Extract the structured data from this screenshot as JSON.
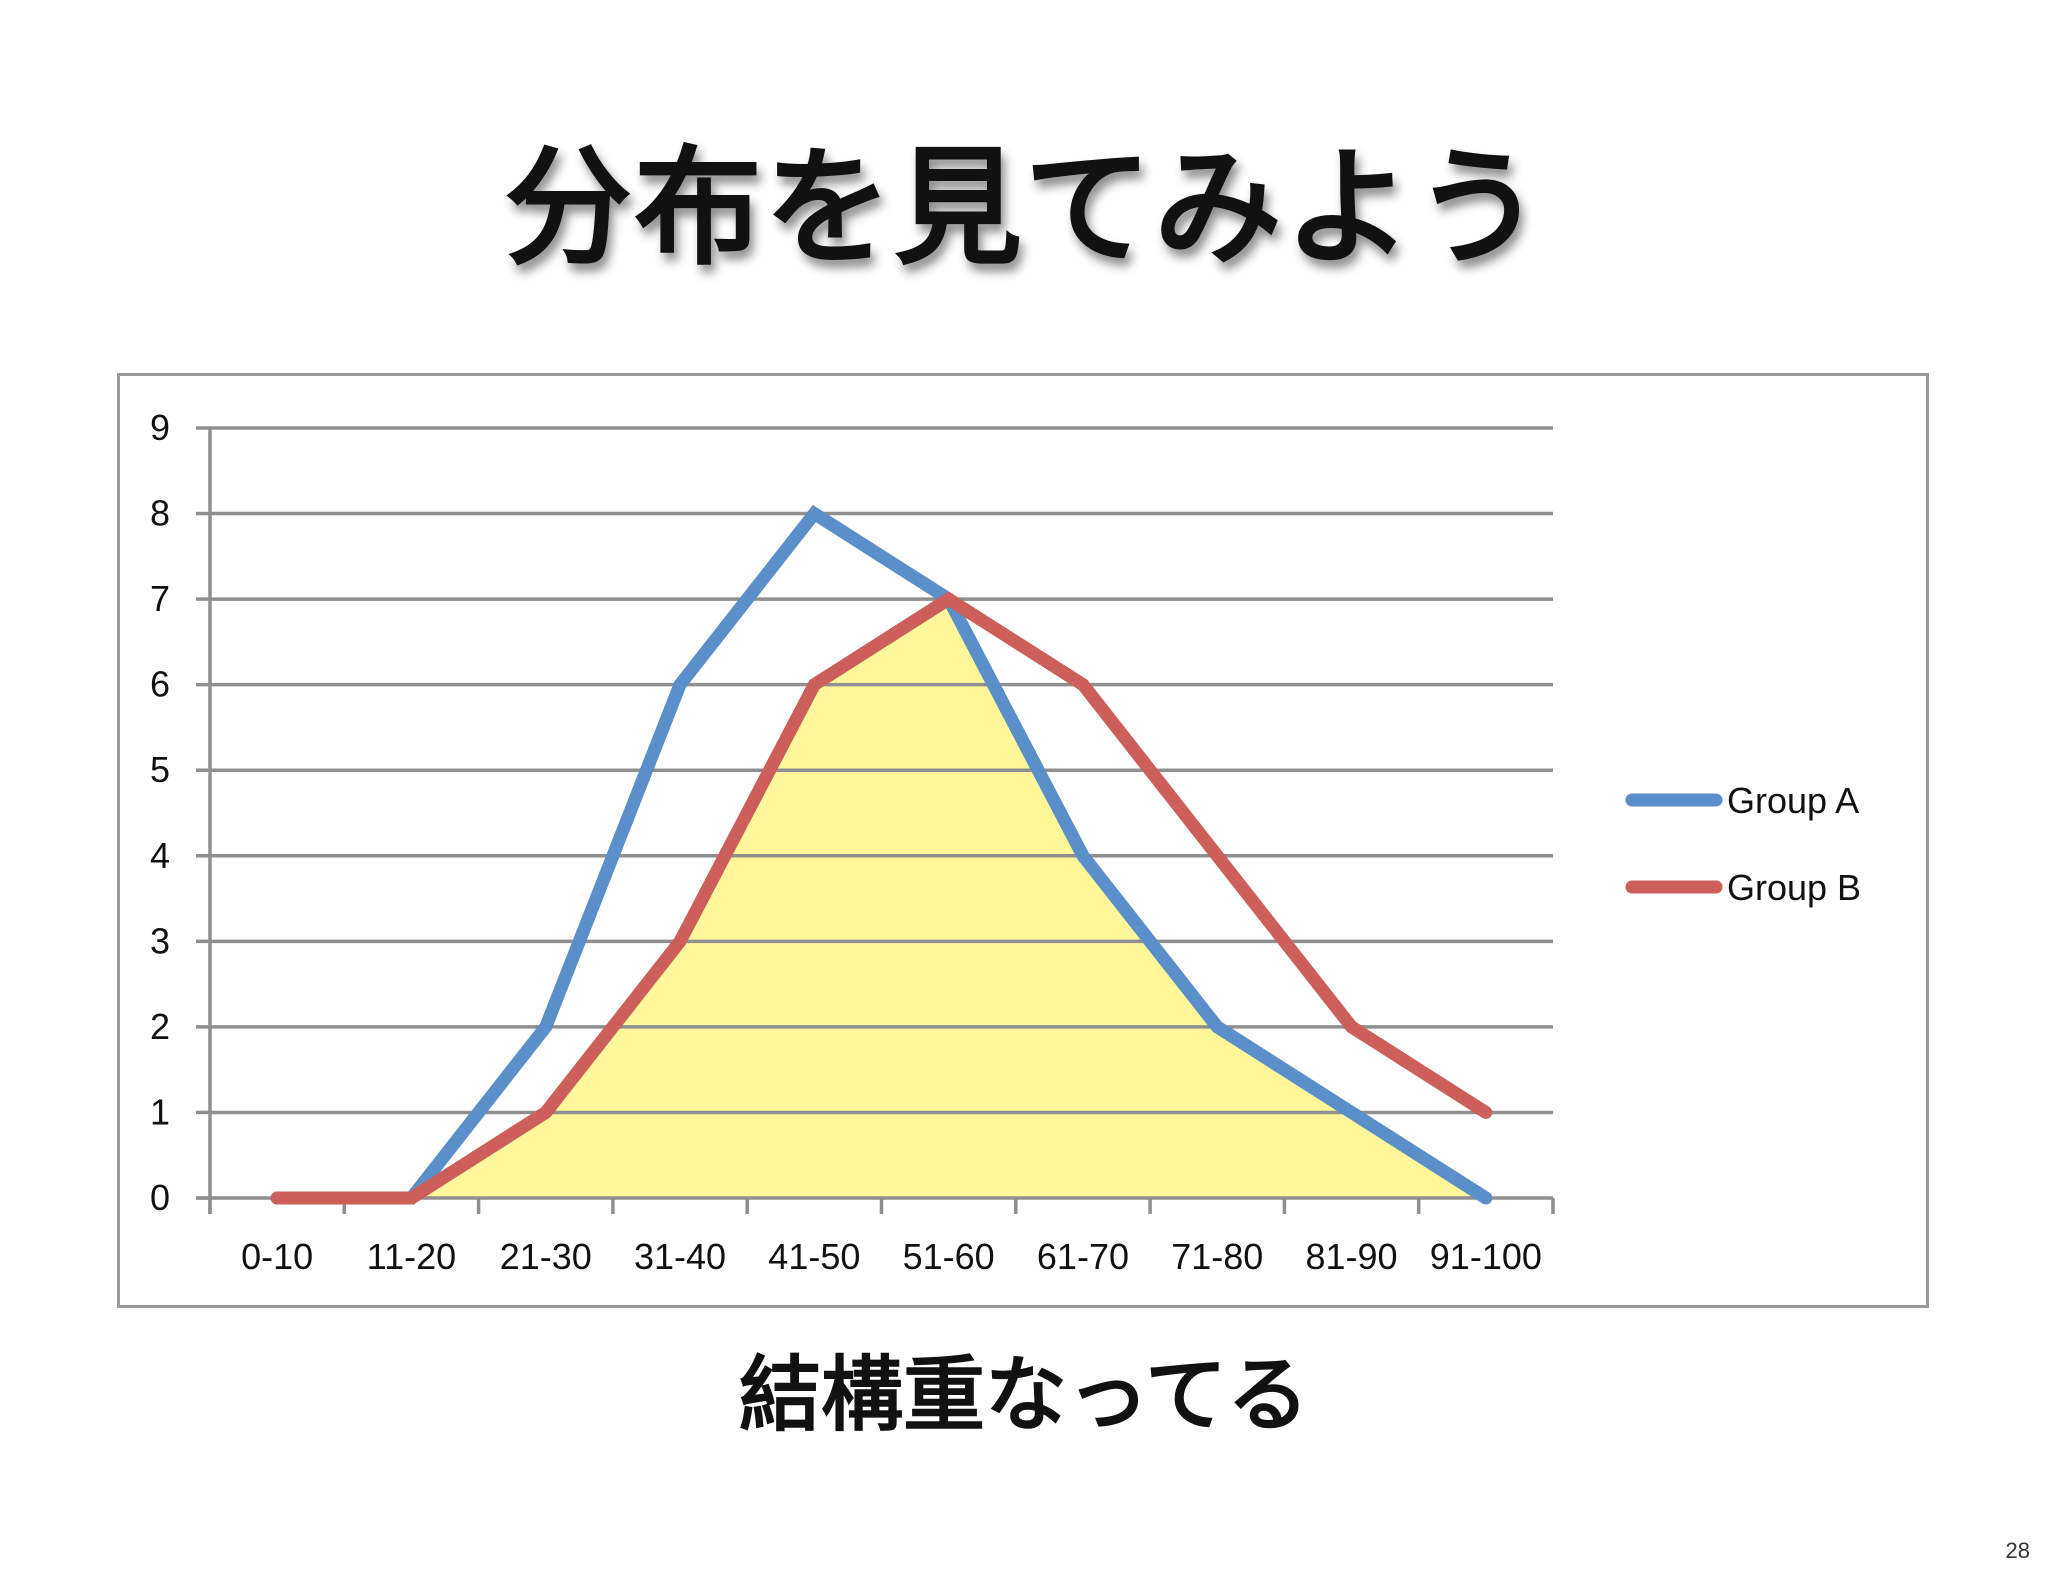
{
  "slide": {
    "title": "分布を見てみよう",
    "subtitle": "結構重なってる",
    "page_number": "28"
  },
  "chart_data": {
    "type": "line",
    "categories": [
      "0-10",
      "11-20",
      "21-30",
      "31-40",
      "41-50",
      "51-60",
      "61-70",
      "71-80",
      "81-90",
      "91-100"
    ],
    "series": [
      {
        "name": "Group A",
        "values": [
          0,
          0,
          2,
          6,
          8,
          7,
          4,
          2,
          1,
          0
        ],
        "color": "#5b8fc9"
      },
      {
        "name": "Group B",
        "values": [
          0,
          0,
          1,
          3,
          6,
          7,
          6,
          4,
          2,
          1
        ],
        "color": "#cc5f5a"
      }
    ],
    "overlap_fill_color": "#fff79a",
    "yticks": [
      "0",
      "1",
      "2",
      "3",
      "4",
      "5",
      "6",
      "7",
      "8",
      "9"
    ],
    "ylim": [
      0,
      9
    ],
    "grid": true,
    "legend_position": "right"
  }
}
